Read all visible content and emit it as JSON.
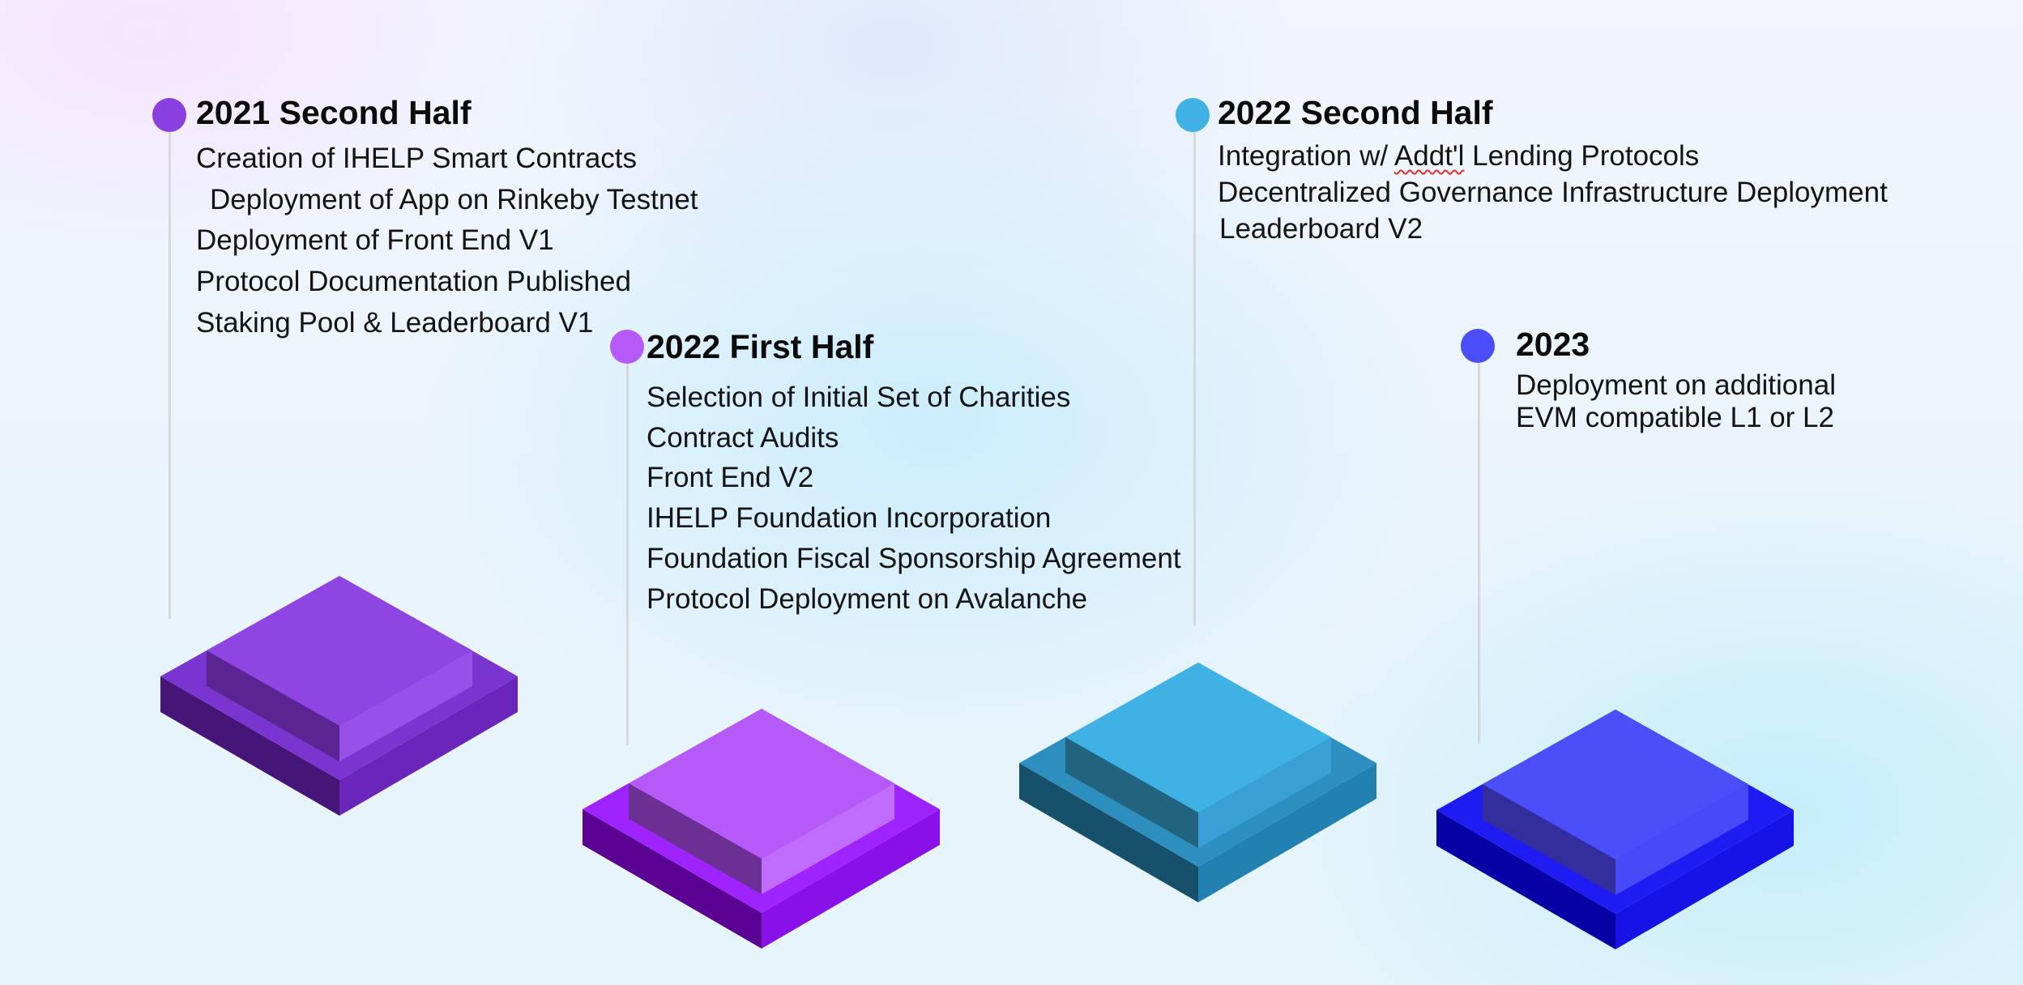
{
  "colors": {
    "phase_2021_h2": "#8a3fe0",
    "phase_2022_h1": "#b55af8",
    "phase_2022_h2": "#3fb1e5",
    "phase_2023": "#4c4ef9",
    "stem": "#d6d8db"
  },
  "milestones": [
    {
      "title": "2021 Second Half",
      "items": [
        "Creation of IHELP Smart Contracts",
        "Deployment of App on Rinkeby Testnet",
        "Deployment of Front End V1",
        "Protocol Documentation Published",
        "Staking Pool & Leaderboard V1"
      ]
    },
    {
      "title": "2022 First Half",
      "items": [
        "Selection of Initial Set of Charities",
        "Contract Audits",
        "Front End V2",
        "IHELP Foundation Incorporation",
        "Foundation Fiscal Sponsorship Agreement",
        "Protocol Deployment on Avalanche"
      ]
    },
    {
      "title": "2022 Second Half",
      "items": [
        {
          "before": "Integration w/ ",
          "flagged": "Addt'l",
          "after": " Lending Protocols"
        },
        "Decentralized Governance Infrastructure Deployment",
        "Leaderboard V2"
      ]
    },
    {
      "title": "2023",
      "items": [
        "Deployment on additional",
        "EVM compatible L1 or L2"
      ]
    }
  ]
}
